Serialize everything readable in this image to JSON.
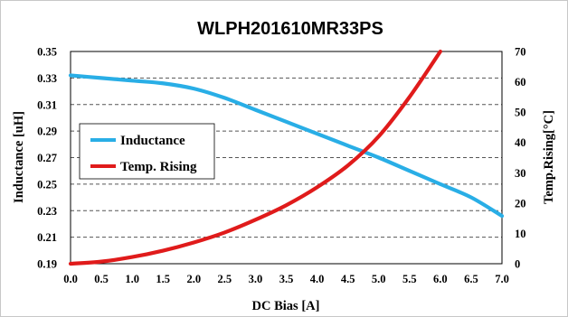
{
  "chart_data": {
    "type": "line",
    "title": "WLPH201610MR33PS",
    "xlabel": "DC Bias [A]",
    "ylabel_left": "Inductance [uH]",
    "ylabel_right": "Temp.Rising[°C]",
    "xlim": [
      0,
      7
    ],
    "ylim_left": [
      0.19,
      0.35
    ],
    "ylim_right": [
      0,
      70
    ],
    "x_ticks": [
      "0.0",
      "0.5",
      "1.0",
      "1.5",
      "2.0",
      "2.5",
      "3.0",
      "3.5",
      "4.0",
      "4.5",
      "5.0",
      "5.5",
      "6.0",
      "6.5",
      "7.0"
    ],
    "y_ticks_left": [
      "0.19",
      "0.21",
      "0.23",
      "0.25",
      "0.27",
      "0.29",
      "0.31",
      "0.33",
      "0.35"
    ],
    "y_ticks_right": [
      "0",
      "10",
      "20",
      "30",
      "40",
      "50",
      "60",
      "70"
    ],
    "grid": "horizontal dashed",
    "legend_position": "left-middle",
    "series": [
      {
        "name": "Inductance",
        "axis": "left",
        "color": "#29aee6",
        "x": [
          0,
          0.5,
          1.0,
          1.5,
          2.0,
          2.5,
          3.0,
          3.5,
          4.0,
          4.5,
          5.0,
          5.5,
          6.0,
          6.5,
          7.0
        ],
        "y": [
          0.332,
          0.33,
          0.328,
          0.326,
          0.322,
          0.315,
          0.306,
          0.297,
          0.288,
          0.279,
          0.27,
          0.26,
          0.25,
          0.24,
          0.226
        ]
      },
      {
        "name": "Temp. Rising",
        "axis": "right",
        "color": "#e01b1b",
        "x": [
          0,
          0.5,
          1.0,
          1.5,
          2.0,
          2.5,
          3.0,
          3.5,
          4.0,
          4.5,
          5.0,
          5.5,
          6.0
        ],
        "y": [
          0,
          0.7,
          2.2,
          4.3,
          7.0,
          10.3,
          14.5,
          19.3,
          25.2,
          32.4,
          42.0,
          55.0,
          70.0
        ]
      }
    ]
  }
}
